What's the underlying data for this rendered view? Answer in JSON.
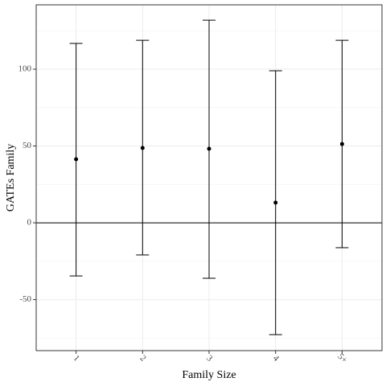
{
  "chart_data": {
    "type": "errorbar",
    "x_label": "Family Size",
    "y_label": "GATEs Family",
    "categories": [
      "1",
      "2",
      "3",
      "4",
      "5+"
    ],
    "series": [
      {
        "color": "#000000",
        "values": [
          41.4,
          48.7,
          48.2,
          13.1,
          51.3
        ],
        "lower": [
          -34.6,
          -20.9,
          -36.1,
          -72.8,
          -16.2
        ],
        "upper": [
          116.8,
          118.8,
          131.9,
          99.0,
          118.8
        ]
      }
    ],
    "ylim": [
      -83.2,
      141.9
    ],
    "yticks": [
      -50,
      0,
      50,
      100
    ],
    "y_minor_ticks": [
      -75,
      -25,
      25,
      75,
      125
    ],
    "hline": 0,
    "grid": true
  }
}
